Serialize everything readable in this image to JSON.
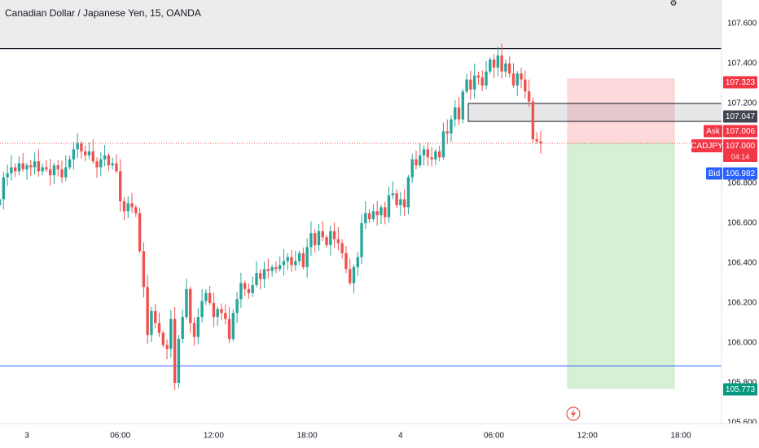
{
  "header": {
    "title": "Canadian Dollar / Japanese Yen, 15, OANDA"
  },
  "chart_data": {
    "type": "candlestick",
    "symbol": "CADJPY",
    "interval": "15",
    "source": "OANDA",
    "ylim": [
      105.6,
      107.8
    ],
    "y_ticks": [
      "107.600",
      "107.400",
      "107.200",
      "107.000",
      "106.800",
      "106.600",
      "106.400",
      "106.200",
      "106.000",
      "105.800",
      "105.600"
    ],
    "x_ticks": [
      {
        "label": "3",
        "index": 0
      },
      {
        "label": "06:00",
        "index": 24
      },
      {
        "label": "12:00",
        "index": 48
      },
      {
        "label": "18:00",
        "index": 72
      },
      {
        "label": "4",
        "index": 96
      },
      {
        "label": "06:00",
        "index": 120
      },
      {
        "label": "12:00",
        "index": 144
      },
      {
        "label": "18:00",
        "index": 168
      }
    ],
    "x_min_index": -7,
    "x_max_index": 177,
    "closes": [
      106.72,
      106.83,
      106.85,
      106.88,
      106.86,
      106.9,
      106.87,
      106.89,
      106.88,
      106.91,
      106.86,
      106.88,
      106.87,
      106.84,
      106.89,
      106.87,
      106.83,
      106.88,
      106.92,
      106.97,
      107.0,
      106.96,
      106.94,
      106.96,
      106.91,
      106.88,
      106.92,
      106.94,
      106.89,
      106.9,
      106.86,
      106.71,
      106.66,
      106.7,
      106.68,
      106.65,
      106.46,
      106.28,
      106.04,
      106.16,
      106.1,
      106.05,
      105.99,
      105.97,
      106.12,
      105.8,
      106.02,
      106.13,
      106.27,
      106.1,
      106.03,
      106.13,
      106.21,
      106.25,
      106.2,
      106.13,
      106.17,
      106.15,
      106.12,
      106.02,
      106.15,
      106.22,
      106.3,
      106.27,
      106.25,
      106.29,
      106.35,
      106.32,
      106.37,
      106.36,
      106.38,
      106.37,
      106.39,
      106.41,
      106.43,
      106.39,
      106.41,
      106.45,
      106.38,
      106.48,
      106.55,
      106.49,
      106.56,
      106.53,
      106.49,
      106.56,
      106.52,
      106.5,
      106.45,
      106.37,
      106.3,
      106.38,
      106.43,
      106.6,
      106.65,
      106.62,
      106.66,
      106.64,
      106.68,
      106.63,
      106.74,
      106.75,
      106.69,
      106.72,
      106.68,
      106.83,
      106.92,
      106.89,
      106.94,
      106.97,
      106.93,
      106.92,
      106.96,
      106.93,
      107.06,
      107.05,
      107.12,
      107.18,
      107.12,
      107.26,
      107.32,
      107.27,
      107.34,
      107.33,
      107.29,
      107.36,
      107.42,
      107.38,
      107.44,
      107.36,
      107.4,
      107.35,
      107.29,
      107.35,
      107.32,
      107.26,
      107.21,
      107.02,
      107.01,
      107.0
    ]
  },
  "price_scale": {
    "stop_label": "107.323",
    "zone_label": "107.047",
    "ask_tag": "Ask",
    "ask_price": "107.006",
    "symbol_tag": "CADJPY",
    "last_price": "107.000",
    "countdown": "04:14",
    "bid_tag": "Bid",
    "bid_price": "106.982",
    "target_label": "105.773"
  },
  "colors": {
    "up": "#26a69a",
    "down": "#ef5350",
    "target_zone": "#d6f0d5",
    "stop_zone": "#fdd9dc",
    "price_line": "#ef5350",
    "support_line": "#2962ff",
    "resistance_line": "#131722",
    "ask_bg": "#f23645",
    "bid_bg": "#2962ff",
    "stop_bg": "#f23645",
    "zone_bg": "#434651",
    "target_bg": "#089981",
    "header_band": "#ececec"
  },
  "icons": {
    "settings": "gear-icon",
    "alert": "lightning-icon"
  }
}
